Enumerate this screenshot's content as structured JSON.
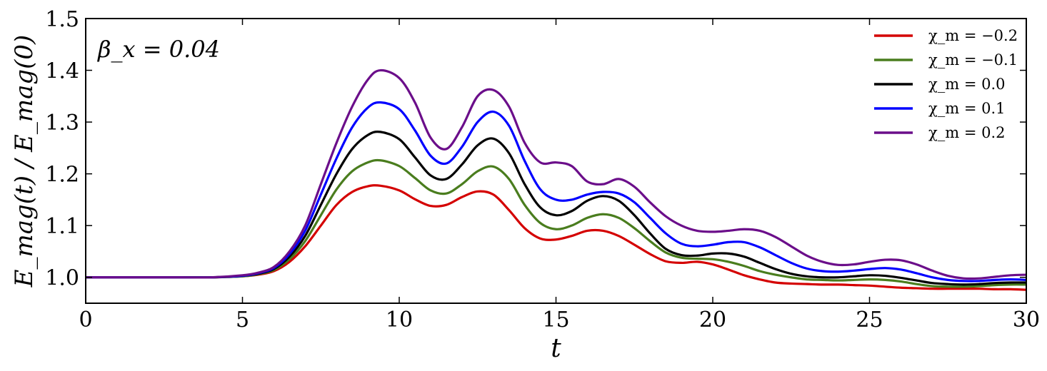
{
  "chart_data": {
    "type": "line",
    "xlabel": "t",
    "ylabel": "E_mag(t) / E_mag(0)",
    "xlim": [
      0,
      30
    ],
    "ylim": [
      0.95,
      1.5
    ],
    "xticks": [
      0,
      5,
      10,
      15,
      20,
      25,
      30
    ],
    "xtick_labels": [
      "0",
      "5",
      "10",
      "15",
      "20",
      "25",
      "30"
    ],
    "yticks": [
      1.0,
      1.1,
      1.2,
      1.3,
      1.4,
      1.5
    ],
    "ytick_labels": [
      "1.0",
      "1.1",
      "1.2",
      "1.3",
      "1.4",
      "1.5"
    ],
    "grid": false,
    "legend_position": "top-right",
    "annotation": "β_x = 0.04",
    "x": [
      0,
      1,
      2,
      3,
      4,
      5,
      5.5,
      6,
      6.5,
      7,
      7.5,
      8,
      8.5,
      9,
      9.4,
      10,
      10.5,
      11,
      11.5,
      12,
      12.5,
      13,
      13.5,
      14,
      14.5,
      15,
      15.5,
      16,
      16.5,
      17,
      17.5,
      18,
      18.5,
      19,
      19.5,
      20,
      20.5,
      21,
      21.5,
      22,
      22.5,
      23,
      23.5,
      24,
      24.5,
      25,
      25.5,
      26,
      26.5,
      27,
      27.5,
      28,
      28.5,
      29,
      29.5,
      30
    ],
    "series": [
      {
        "name": "χ_m = −0.2",
        "color": "#d40000",
        "values": [
          1.0,
          1.0,
          1.0,
          1.0,
          1.0,
          1.002,
          1.005,
          1.012,
          1.03,
          1.06,
          1.1,
          1.14,
          1.165,
          1.176,
          1.177,
          1.168,
          1.151,
          1.138,
          1.14,
          1.155,
          1.166,
          1.16,
          1.13,
          1.095,
          1.075,
          1.073,
          1.08,
          1.09,
          1.09,
          1.08,
          1.063,
          1.045,
          1.031,
          1.028,
          1.03,
          1.025,
          1.015,
          1.004,
          0.996,
          0.99,
          0.988,
          0.987,
          0.986,
          0.986,
          0.985,
          0.984,
          0.982,
          0.98,
          0.979,
          0.978,
          0.978,
          0.978,
          0.978,
          0.977,
          0.977,
          0.976
        ]
      },
      {
        "name": "χ_m = −0.1",
        "color": "#4a7d1e",
        "values": [
          1.0,
          1.0,
          1.0,
          1.0,
          1.0,
          1.002,
          1.006,
          1.014,
          1.035,
          1.07,
          1.12,
          1.17,
          1.205,
          1.222,
          1.226,
          1.215,
          1.192,
          1.168,
          1.162,
          1.18,
          1.205,
          1.214,
          1.19,
          1.14,
          1.105,
          1.093,
          1.1,
          1.115,
          1.122,
          1.115,
          1.095,
          1.07,
          1.048,
          1.038,
          1.036,
          1.035,
          1.03,
          1.022,
          1.012,
          1.005,
          1.0,
          0.996,
          0.995,
          0.994,
          0.995,
          0.996,
          0.995,
          0.992,
          0.987,
          0.983,
          0.982,
          0.982,
          0.983,
          0.985,
          0.986,
          0.986
        ]
      },
      {
        "name": "χ_m = 0.0",
        "color": "#000000",
        "values": [
          1.0,
          1.0,
          1.0,
          1.0,
          1.0,
          1.003,
          1.007,
          1.016,
          1.04,
          1.08,
          1.14,
          1.2,
          1.248,
          1.275,
          1.281,
          1.267,
          1.232,
          1.197,
          1.19,
          1.218,
          1.255,
          1.268,
          1.24,
          1.18,
          1.135,
          1.12,
          1.128,
          1.148,
          1.157,
          1.148,
          1.12,
          1.085,
          1.055,
          1.043,
          1.042,
          1.046,
          1.046,
          1.04,
          1.028,
          1.016,
          1.007,
          1.002,
          1.0,
          1.0,
          1.002,
          1.004,
          1.003,
          0.999,
          0.994,
          0.989,
          0.987,
          0.986,
          0.987,
          0.989,
          0.99,
          0.99
        ]
      },
      {
        "name": "χ_m = 0.1",
        "color": "#0000ff",
        "values": [
          1.0,
          1.0,
          1.0,
          1.0,
          1.0,
          1.003,
          1.008,
          1.018,
          1.045,
          1.09,
          1.16,
          1.23,
          1.29,
          1.328,
          1.338,
          1.325,
          1.284,
          1.235,
          1.22,
          1.252,
          1.3,
          1.32,
          1.293,
          1.225,
          1.17,
          1.15,
          1.15,
          1.16,
          1.165,
          1.162,
          1.145,
          1.115,
          1.085,
          1.065,
          1.06,
          1.063,
          1.068,
          1.068,
          1.058,
          1.043,
          1.028,
          1.017,
          1.012,
          1.011,
          1.013,
          1.016,
          1.018,
          1.015,
          1.008,
          1.0,
          0.995,
          0.993,
          0.993,
          0.995,
          0.996,
          0.995
        ]
      },
      {
        "name": "χ_m = 0.2",
        "color": "#6b0e8a",
        "values": [
          1.0,
          1.0,
          1.0,
          1.0,
          1.0,
          1.004,
          1.009,
          1.02,
          1.05,
          1.1,
          1.18,
          1.26,
          1.33,
          1.382,
          1.4,
          1.385,
          1.338,
          1.27,
          1.248,
          1.29,
          1.35,
          1.362,
          1.33,
          1.26,
          1.222,
          1.222,
          1.215,
          1.185,
          1.18,
          1.19,
          1.175,
          1.145,
          1.118,
          1.1,
          1.09,
          1.088,
          1.09,
          1.093,
          1.09,
          1.078,
          1.06,
          1.042,
          1.03,
          1.024,
          1.025,
          1.03,
          1.034,
          1.033,
          1.025,
          1.013,
          1.003,
          0.998,
          0.998,
          1.001,
          1.004,
          1.005
        ]
      }
    ]
  }
}
